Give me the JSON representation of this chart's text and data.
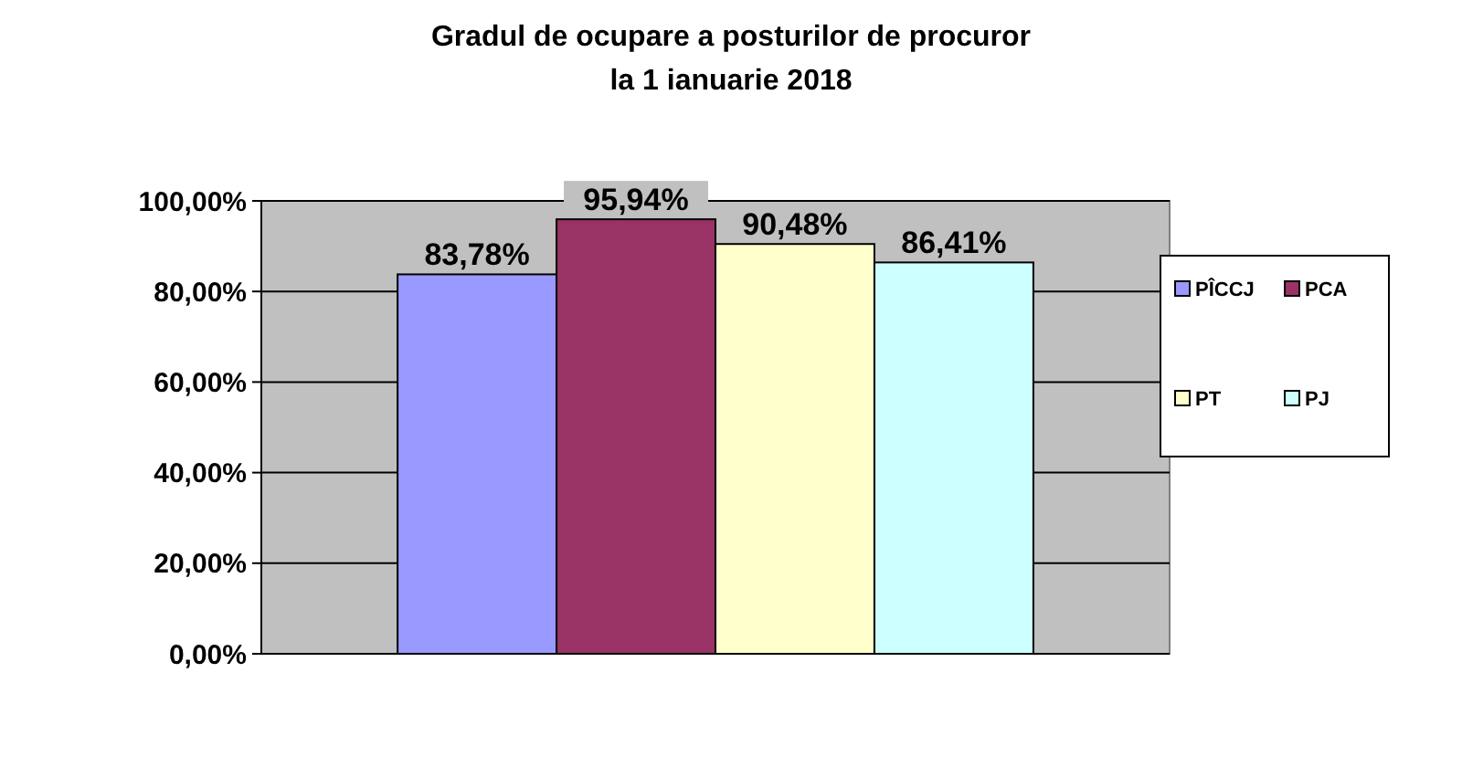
{
  "chart_data": {
    "type": "bar",
    "title": "Gradul de ocupare a posturilor de procuror\nla 1 ianuarie 2018",
    "categories": [
      null
    ],
    "series": [
      {
        "name": "PÎCCJ",
        "color": "#9999ff",
        "values": [
          83.78
        ],
        "value_labels": [
          "83,78%"
        ]
      },
      {
        "name": "PCA",
        "color": "#993366",
        "values": [
          95.94
        ],
        "value_labels": [
          "95,94%"
        ]
      },
      {
        "name": "PT",
        "color": "#ffffcc",
        "values": [
          90.48
        ],
        "value_labels": [
          "90,48%"
        ]
      },
      {
        "name": "PJ",
        "color": "#ccffff",
        "values": [
          86.41
        ],
        "value_labels": [
          "86,41%"
        ]
      }
    ],
    "ylim": [
      0,
      100
    ],
    "yticks": [
      {
        "value": 0,
        "label": "0,00%"
      },
      {
        "value": 20,
        "label": "20,00%"
      },
      {
        "value": 40,
        "label": "40,00%"
      },
      {
        "value": 60,
        "label": "60,00%"
      },
      {
        "value": 80,
        "label": "80,00%"
      },
      {
        "value": 100,
        "label": "100,00%"
      }
    ],
    "grid": "y",
    "legend": "right"
  }
}
